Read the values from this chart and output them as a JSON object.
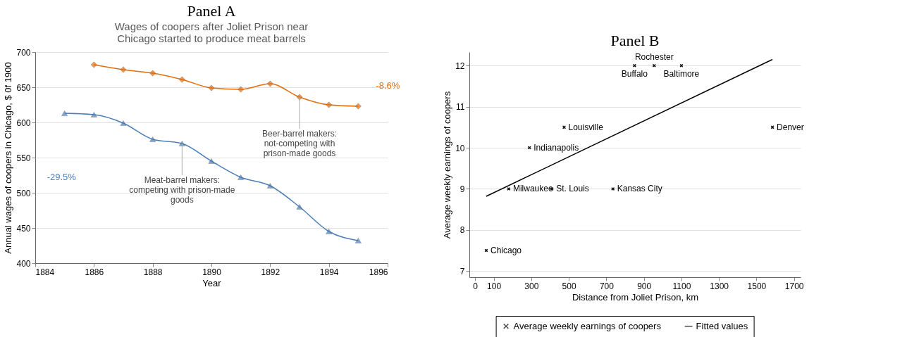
{
  "chart_data": [
    {
      "type": "line",
      "title": "Panel A",
      "subtitle": "Wages of coopers after Joliet Prison near Chicago started to produce meat barrels",
      "xlabel": "Year",
      "ylabel": "Annual wages of coopers in Chicago, $ 0f 1900",
      "xlim": [
        1884,
        1896
      ],
      "xticks": [
        1884,
        1886,
        1888,
        1890,
        1892,
        1894,
        1896
      ],
      "ylim": [
        400,
        700
      ],
      "yticks": [
        400,
        450,
        500,
        550,
        600,
        650,
        700
      ],
      "grid": "y",
      "legend": false,
      "series": [
        {
          "color": "#4a7ebb",
          "marker": "triangle",
          "x": [
            1885,
            1886,
            1887,
            1888,
            1889,
            1890,
            1891,
            1892,
            1893,
            1894,
            1895
          ],
          "values": [
            613,
            611,
            599,
            576,
            570,
            545,
            522,
            510,
            480,
            445,
            432
          ]
        },
        {
          "color": "#e46c0a",
          "marker": "diamond",
          "x": [
            1886,
            1887,
            1888,
            1889,
            1890,
            1891,
            1892,
            1893,
            1894,
            1895
          ],
          "values": [
            682,
            675,
            670,
            661,
            649,
            647,
            655,
            636,
            625,
            623
          ]
        }
      ],
      "annotations": [
        {
          "text": "Meat-barrel makers:\ncompeting with prison-made\ngoods",
          "x": 1889,
          "y": 570
        },
        {
          "text": "Beer-barrel makers:\nnot-competing with\nprison-made goods",
          "x": 1893,
          "y": 636
        },
        "-29.5%",
        "-8.6%"
      ]
    },
    {
      "type": "scatter",
      "title": "Panel B",
      "xlabel": "Distance from Joliet Prison, km",
      "ylabel": "Average weekly earnings of coopers",
      "xlim": [
        -30,
        1735
      ],
      "xticks": [
        0,
        100,
        300,
        500,
        700,
        900,
        1100,
        1300,
        1500,
        1700
      ],
      "ylim": [
        6.85,
        12.33
      ],
      "yticks": [
        7,
        8,
        9,
        10,
        11,
        12
      ],
      "grid": "y",
      "legend": "bottom",
      "series": [
        {
          "name": "Average weekly earnings of coopers",
          "color": "#000000",
          "marker": "cross",
          "x": [
            60,
            180,
            410,
            290,
            475,
            735,
            850,
            955,
            1100,
            1585
          ],
          "values": [
            7.5,
            9,
            9,
            10,
            10.5,
            9,
            12,
            12,
            12,
            10.5
          ]
        },
        {
          "name": "Fitted values",
          "type": "line",
          "color": "#000000",
          "marker": "none",
          "x": [
            60,
            1585
          ],
          "values": [
            8.82,
            12.15
          ]
        }
      ],
      "annotations": [
        {
          "text": "Chicago",
          "x": 60,
          "y": 7.5
        },
        {
          "text": "Milwaukee",
          "x": 180,
          "y": 9
        },
        {
          "text": "St. Louis",
          "x": 410,
          "y": 9
        },
        {
          "text": "Indianapolis",
          "x": 290,
          "y": 10
        },
        {
          "text": "Louisville",
          "x": 475,
          "y": 10.5
        },
        {
          "text": "Kansas City",
          "x": 735,
          "y": 9
        },
        {
          "text": "Buffalo",
          "x": 850,
          "y": 12
        },
        {
          "text": "Rochester",
          "x": 955,
          "y": 12
        },
        {
          "text": "Baltimore",
          "x": 1100,
          "y": 12
        },
        {
          "text": "Denver",
          "x": 1585,
          "y": 10.5
        }
      ]
    }
  ]
}
